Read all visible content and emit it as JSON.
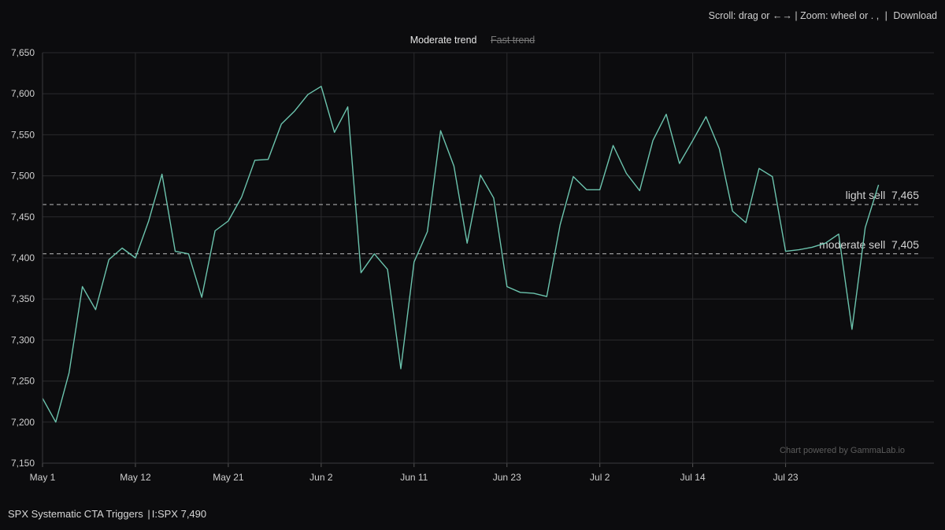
{
  "toolbar": {
    "scroll_text": "Scroll: drag or ←→",
    "zoom_text": "Zoom: wheel or . ,",
    "separator": "|",
    "download_label": "Download"
  },
  "legend": {
    "items": [
      {
        "label": "Moderate trend",
        "active": true
      },
      {
        "label": "Fast trend",
        "active": false
      }
    ]
  },
  "watermark": "Chart powered by GammaLab.io",
  "footer": {
    "title": "SPX Systematic CTA Triggers",
    "ticker": "I:SPX",
    "price": "7,490"
  },
  "colors": {
    "background": "#0c0c0e",
    "line": "#6cc4ae",
    "grid": "#2a2a2d",
    "threshold": "#bdbdbd"
  },
  "chart_data": {
    "type": "line",
    "title": "",
    "xlabel": "",
    "ylabel": "",
    "ylim": [
      7150,
      7650
    ],
    "y_ticks": [
      7150,
      7200,
      7250,
      7300,
      7350,
      7400,
      7450,
      7500,
      7550,
      7600,
      7650
    ],
    "y_tick_labels": [
      "7,150",
      "7,200",
      "7,250",
      "7,300",
      "7,350",
      "7,400",
      "7,450",
      "7,500",
      "7,550",
      "7,600",
      "7,650"
    ],
    "x_ticks": [
      {
        "label": "May 1",
        "index": 0
      },
      {
        "label": "May 12",
        "index": 7
      },
      {
        "label": "May 21",
        "index": 14
      },
      {
        "label": "Jun 2",
        "index": 21
      },
      {
        "label": "Jun 11",
        "index": 28
      },
      {
        "label": "Jun 23",
        "index": 35
      },
      {
        "label": "Jul 2",
        "index": 42
      },
      {
        "label": "Jul 14",
        "index": 49
      },
      {
        "label": "Jul 23",
        "index": 56
      }
    ],
    "grid": true,
    "legend_placement": "top-center",
    "series": [
      {
        "name": "Moderate trend",
        "values": [
          7229,
          7200,
          7260,
          7365,
          7337,
          7398,
          7412,
          7400,
          7445,
          7502,
          7408,
          7405,
          7352,
          7433,
          7445,
          7474,
          7519,
          7520,
          7563,
          7579,
          7599,
          7609,
          7553,
          7584,
          7382,
          7405,
          7386,
          7265,
          7395,
          7432,
          7555,
          7512,
          7418,
          7501,
          7473,
          7365,
          7358,
          7357,
          7353,
          7440,
          7499,
          7483,
          7483,
          7537,
          7503,
          7482,
          7543,
          7575,
          7515,
          7543,
          7572,
          7533,
          7457,
          7443,
          7509,
          7499,
          7408,
          7410,
          7413,
          7418,
          7429,
          7313,
          7437,
          7489
        ]
      }
    ],
    "thresholds": [
      {
        "label": "light sell",
        "value": 7465,
        "value_label": "7,465"
      },
      {
        "label": "moderate sell",
        "value": 7405,
        "value_label": "7,405"
      }
    ]
  }
}
